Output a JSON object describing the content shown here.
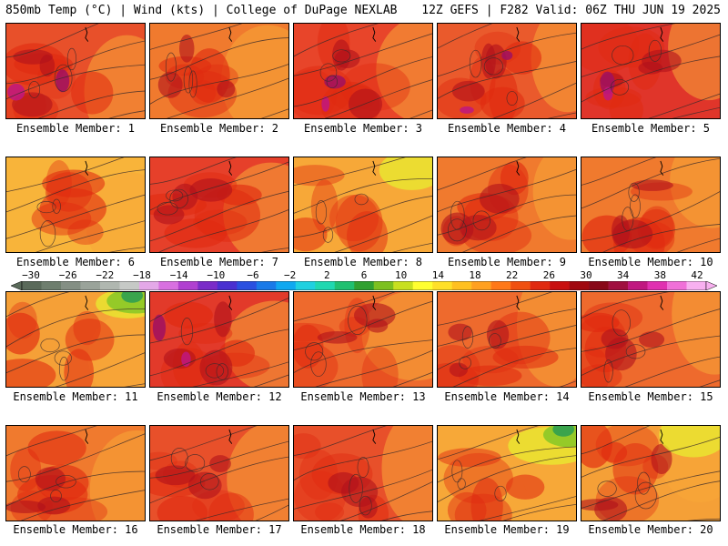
{
  "header": {
    "left": "850mb Temp (°C) | Wind (kts) | College of DuPage NEXLAB",
    "right": "12Z GEFS | F282 Valid: 06Z THU JUN 19 2025"
  },
  "label_prefix": "Ensemble Member: ",
  "members": [
    {
      "id": "1",
      "label": "Ensemble Member: 1",
      "base": "#e8502a",
      "hot": 2,
      "cool": 0
    },
    {
      "id": "2",
      "label": "Ensemble Member: 2",
      "base": "#f07a2e",
      "hot": 1,
      "cool": 0
    },
    {
      "id": "3",
      "label": "Ensemble Member: 3",
      "base": "#e8452a",
      "hot": 2,
      "cool": 0
    },
    {
      "id": "4",
      "label": "Ensemble Member: 4",
      "base": "#ea5a2c",
      "hot": 2,
      "cool": 0
    },
    {
      "id": "5",
      "label": "Ensemble Member: 5",
      "base": "#e0352a",
      "hot": 2,
      "cool": 0
    },
    {
      "id": "6",
      "label": "Ensemble Member: 6",
      "base": "#f8b43a",
      "hot": 0,
      "cool": 0
    },
    {
      "id": "7",
      "label": "Ensemble Member: 7",
      "base": "#e6402a",
      "hot": 1,
      "cool": 0
    },
    {
      "id": "8",
      "label": "Ensemble Member: 8",
      "base": "#f7a838",
      "hot": 0,
      "cool": 1
    },
    {
      "id": "9",
      "label": "Ensemble Member: 9",
      "base": "#f07a2e",
      "hot": 1,
      "cool": 0
    },
    {
      "id": "10",
      "label": "Ensemble Member: 10",
      "base": "#f07a2e",
      "hot": 1,
      "cool": 0
    },
    {
      "id": "11",
      "label": "Ensemble Member: 11",
      "base": "#f5a037",
      "hot": 0,
      "cool": 2
    },
    {
      "id": "12",
      "label": "Ensemble Member: 12",
      "base": "#e23a2a",
      "hot": 2,
      "cool": 0
    },
    {
      "id": "13",
      "label": "Ensemble Member: 13",
      "base": "#ee6a2d",
      "hot": 1,
      "cool": 0
    },
    {
      "id": "14",
      "label": "Ensemble Member: 14",
      "base": "#ee6a2d",
      "hot": 1,
      "cool": 0
    },
    {
      "id": "15",
      "label": "Ensemble Member: 15",
      "base": "#ee6a2d",
      "hot": 1,
      "cool": 0
    },
    {
      "id": "16",
      "label": "Ensemble Member: 16",
      "base": "#f07a2e",
      "hot": 1,
      "cool": 0
    },
    {
      "id": "17",
      "label": "Ensemble Member: 17",
      "base": "#e8502a",
      "hot": 1,
      "cool": 0
    },
    {
      "id": "18",
      "label": "Ensemble Member: 18",
      "base": "#e8502a",
      "hot": 1,
      "cool": 0
    },
    {
      "id": "19",
      "label": "Ensemble Member: 19",
      "base": "#f7a838",
      "hot": 0,
      "cool": 2
    },
    {
      "id": "20",
      "label": "Ensemble Member: 20",
      "base": "#f5a037",
      "hot": 1,
      "cool": 1
    }
  ],
  "colorbar": {
    "tick_labels": [
      "−30",
      "−26",
      "−22",
      "−18",
      "−14",
      "−10",
      "−6",
      "−2",
      "2",
      "6",
      "10",
      "14",
      "18",
      "22",
      "26",
      "30",
      "34",
      "38",
      "42"
    ],
    "colors": [
      "#5a6a5a",
      "#6e7e6e",
      "#848f84",
      "#9aa39a",
      "#b0b7b0",
      "#c6c9c6",
      "#e4a8e8",
      "#d870e0",
      "#b040d0",
      "#7a2cc8",
      "#4a30d0",
      "#2a50e0",
      "#1a7ae8",
      "#10a8f0",
      "#20d0e0",
      "#20d8b0",
      "#20c070",
      "#30a030",
      "#7cc020",
      "#c8e020",
      "#ffff30",
      "#ffe028",
      "#ffc020",
      "#ffa020",
      "#ff7818",
      "#f05010",
      "#e02a10",
      "#c81010",
      "#a00810",
      "#880818",
      "#a01040",
      "#c01880",
      "#e030b0",
      "#f070d8",
      "#f8b0f0"
    ]
  }
}
